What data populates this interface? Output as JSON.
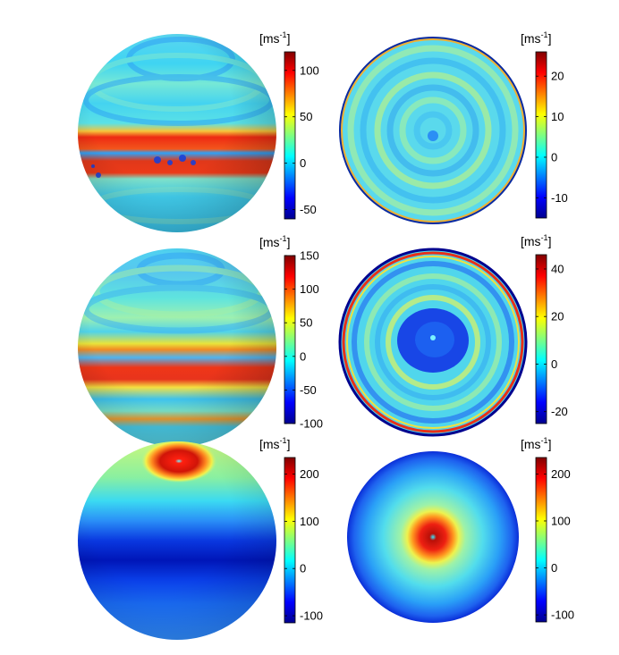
{
  "chart_data": [
    {
      "type": "heatmap",
      "view": "equatorial",
      "colorbar": {
        "unit": "[ms",
        "unit_exp": "-1",
        "unit_close": "]",
        "range": [
          -60,
          120
        ],
        "ticks": [
          100,
          50,
          0,
          -50
        ],
        "tick_labels": [
          "100",
          "50",
          "0",
          "-50"
        ]
      }
    },
    {
      "type": "heatmap",
      "view": "polar",
      "colorbar": {
        "unit": "[ms",
        "unit_exp": "-1",
        "unit_close": "]",
        "range": [
          -15,
          26
        ],
        "ticks": [
          20,
          10,
          0,
          -10
        ],
        "tick_labels": [
          "20",
          "10",
          "0",
          "-10"
        ]
      }
    },
    {
      "type": "heatmap",
      "view": "equatorial",
      "colorbar": {
        "unit": "[ms",
        "unit_exp": "-1",
        "unit_close": "]",
        "range": [
          -100,
          150
        ],
        "ticks": [
          150,
          100,
          50,
          0,
          -50,
          -100
        ],
        "tick_labels": [
          "150",
          "100",
          "50",
          "0",
          "-50",
          "-100"
        ]
      }
    },
    {
      "type": "heatmap",
      "view": "polar",
      "colorbar": {
        "unit": "[ms",
        "unit_exp": "-1",
        "unit_close": "]",
        "range": [
          -25,
          46
        ],
        "ticks": [
          40,
          20,
          0,
          -20
        ],
        "tick_labels": [
          "40",
          "20",
          "0",
          "-20"
        ]
      }
    },
    {
      "type": "heatmap",
      "view": "equatorial",
      "colorbar": {
        "unit": "[ms",
        "unit_exp": "-1",
        "unit_close": "]",
        "range": [
          -115,
          235
        ],
        "ticks": [
          200,
          100,
          0,
          -100
        ],
        "tick_labels": [
          "200",
          "100",
          "0",
          "-100"
        ]
      }
    },
    {
      "type": "heatmap",
      "view": "polar",
      "colorbar": {
        "unit": "[ms",
        "unit_exp": "-1",
        "unit_close": "]",
        "range": [
          -115,
          235
        ],
        "ticks": [
          200,
          100,
          0,
          -100
        ],
        "tick_labels": [
          "200",
          "100",
          "0",
          "-100"
        ]
      }
    }
  ],
  "colors": {
    "jet_dark_blue": "#00008f",
    "jet_blue": "#0000ff",
    "jet_cyan": "#00ffff",
    "jet_yellow": "#ffff00",
    "jet_red": "#ff0000",
    "jet_dark_red": "#800000"
  }
}
